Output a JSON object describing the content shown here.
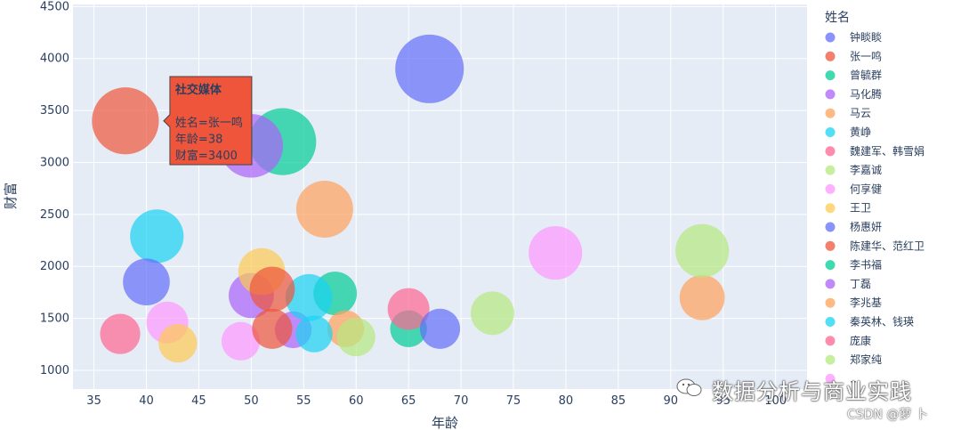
{
  "chart_data": {
    "type": "scatter",
    "title": "",
    "xlabel": "年龄",
    "ylabel": "财富",
    "xlim": [
      33,
      103
    ],
    "ylim": [
      820,
      4520
    ],
    "xticks": [
      35,
      40,
      45,
      50,
      55,
      60,
      65,
      70,
      75,
      80,
      85,
      90,
      95,
      100
    ],
    "yticks": [
      1000,
      1500,
      2000,
      2500,
      3000,
      3500,
      4000,
      4500
    ],
    "legend_title": "姓名",
    "legend_position": "right",
    "series": [
      {
        "name": "钟睒睒",
        "color": "#636efa",
        "points": [
          {
            "x": 67,
            "y": 3900,
            "s": 4.1
          }
        ]
      },
      {
        "name": "张一鸣",
        "color": "#EF553B",
        "points": [
          {
            "x": 38,
            "y": 3400,
            "s": 4.0
          }
        ]
      },
      {
        "name": "曾毓群",
        "color": "#00cc96",
        "points": [
          {
            "x": 53,
            "y": 3200,
            "s": 4.0
          },
          {
            "x": 58,
            "y": 1740,
            "s": 2.6
          },
          {
            "x": 65,
            "y": 1400,
            "s": 2.2
          }
        ]
      },
      {
        "name": "马化腾",
        "color": "#ab63fa",
        "points": [
          {
            "x": 50,
            "y": 3160,
            "s": 3.8
          },
          {
            "x": 50,
            "y": 1720,
            "s": 2.7
          },
          {
            "x": 54,
            "y": 1390,
            "s": 2.2
          }
        ]
      },
      {
        "name": "马云",
        "color": "#FFA15A",
        "points": [
          {
            "x": 57,
            "y": 2550,
            "s": 3.4
          },
          {
            "x": 93,
            "y": 1700,
            "s": 2.7
          },
          {
            "x": 59,
            "y": 1400,
            "s": 2.2
          }
        ]
      },
      {
        "name": "黄峥",
        "color": "#19d3f3",
        "points": [
          {
            "x": 41,
            "y": 2290,
            "s": 3.2
          },
          {
            "x": 55.5,
            "y": 1700,
            "s": 2.8
          },
          {
            "x": 56,
            "y": 1350,
            "s": 2.2
          }
        ]
      },
      {
        "name": "魏建军、韩雪娟",
        "color": "#FF6692",
        "points": [
          {
            "x": 65,
            "y": 1590,
            "s": 2.5
          },
          {
            "x": 37.5,
            "y": 1350,
            "s": 2.4
          }
        ]
      },
      {
        "name": "李嘉诚",
        "color": "#B6E880",
        "points": [
          {
            "x": 93,
            "y": 2150,
            "s": 3.2
          },
          {
            "x": 73,
            "y": 1550,
            "s": 2.6
          },
          {
            "x": 60,
            "y": 1320,
            "s": 2.3
          }
        ]
      },
      {
        "name": "何享健",
        "color": "#FF97FF",
        "points": [
          {
            "x": 79,
            "y": 2130,
            "s": 3.2
          },
          {
            "x": 42,
            "y": 1460,
            "s": 2.5
          },
          {
            "x": 49,
            "y": 1280,
            "s": 2.3
          }
        ]
      },
      {
        "name": "王卫",
        "color": "#FECB52",
        "points": [
          {
            "x": 51,
            "y": 1950,
            "s": 2.8
          },
          {
            "x": 43,
            "y": 1260,
            "s": 2.3
          }
        ]
      },
      {
        "name": "杨惠妍",
        "color": "#636efa",
        "points": [
          {
            "x": 40,
            "y": 1850,
            "s": 2.8
          },
          {
            "x": 68,
            "y": 1400,
            "s": 2.4
          }
        ]
      },
      {
        "name": "陈建华、范红卫",
        "color": "#EF553B",
        "points": [
          {
            "x": 52,
            "y": 1780,
            "s": 2.7
          },
          {
            "x": 52,
            "y": 1400,
            "s": 2.4
          }
        ]
      },
      {
        "name": "李书福",
        "color": "#00cc96",
        "points": []
      },
      {
        "name": "丁磊",
        "color": "#ab63fa",
        "points": []
      },
      {
        "name": "李兆基",
        "color": "#FFA15A",
        "points": []
      },
      {
        "name": "秦英林、钱瑛",
        "color": "#19d3f3",
        "points": []
      },
      {
        "name": "庞康",
        "color": "#FF6692",
        "points": []
      },
      {
        "name": "郑家纯",
        "color": "#B6E880",
        "points": []
      },
      {
        "name": "…",
        "color": "#FF97FF",
        "points": []
      }
    ],
    "hover": {
      "title": "社交媒体",
      "lines": [
        "姓名=张一鸣",
        "年龄=38",
        "财富=3400"
      ],
      "anchor": {
        "x": 38,
        "y": 3400
      },
      "bg": "#EF553B"
    }
  },
  "watermark": {
    "main": "数据分析与商业实践",
    "csdn": "CSDN @萝 卜"
  }
}
